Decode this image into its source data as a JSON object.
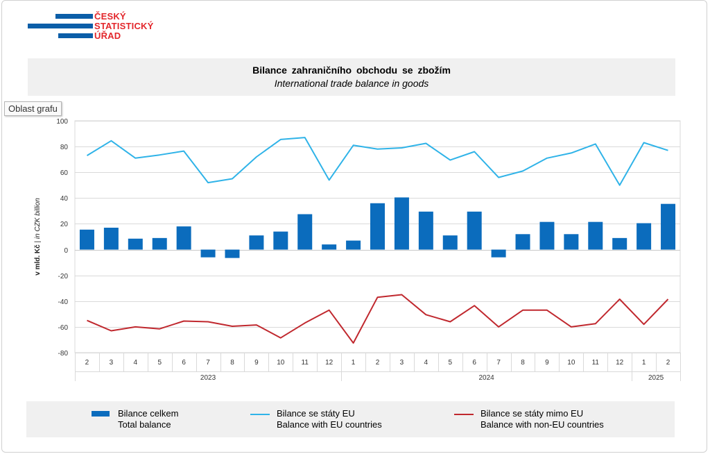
{
  "logo": {
    "line1": "ČESKÝ",
    "line2": "STATISTICKÝ",
    "line3": "ÚŘAD"
  },
  "header": {
    "title_cz": "Bilance zahraničního obchodu se zbožím",
    "title_en": "International trade balance in goods"
  },
  "tooltip": {
    "label": "Oblast grafu"
  },
  "colors": {
    "bars": "#0b6cbd",
    "eu_line": "#2fb3e8",
    "non_eu_line": "#c0282e"
  },
  "chart_data": {
    "type": "bar+line",
    "ylabel_cz": "v mld. Kč",
    "ylabel_en": "in CZK billion",
    "ylabel_sep": " | ",
    "ylim": [
      -80,
      100
    ],
    "yticks": [
      100,
      80,
      60,
      40,
      20,
      0,
      -20,
      -40,
      -60,
      -80
    ],
    "categories": [
      "2",
      "3",
      "4",
      "5",
      "6",
      "7",
      "8",
      "9",
      "10",
      "11",
      "12",
      "1",
      "2",
      "3",
      "4",
      "5",
      "6",
      "7",
      "8",
      "9",
      "10",
      "11",
      "12",
      "1",
      "2"
    ],
    "years": [
      {
        "label": "2023",
        "span": 11
      },
      {
        "label": "2024",
        "span": 12
      },
      {
        "label": "2025",
        "span": 2
      }
    ],
    "series": [
      {
        "name": "Bilance celkem",
        "name_en": "Total balance",
        "kind": "bar",
        "values": [
          15.5,
          17,
          8.5,
          9,
          18,
          -6,
          -6.5,
          11,
          14,
          27.5,
          4,
          7,
          36,
          40.5,
          29.5,
          11,
          29.5,
          -6,
          12,
          21.5,
          12,
          21.5,
          9,
          20.5,
          35.5
        ]
      },
      {
        "name": "Bilance se státy EU",
        "name_en": "Balance with EU countries",
        "kind": "line",
        "values": [
          73,
          84.5,
          71,
          73.5,
          76.5,
          52,
          55,
          72,
          85.5,
          87,
          54,
          81,
          78,
          79,
          82.5,
          69.5,
          76,
          56,
          61,
          71,
          75,
          82,
          50,
          83,
          77
        ]
      },
      {
        "name": "Bilance se státy mimo EU",
        "name_en": "Balance with non-EU countries",
        "kind": "line",
        "values": [
          -55,
          -63,
          -60,
          -61.5,
          -55.5,
          -56,
          -59.5,
          -58.5,
          -68.5,
          -57,
          -47,
          -72.5,
          -37,
          -35,
          -50.5,
          -56,
          -43.5,
          -60,
          -47,
          -47,
          -60,
          -57.5,
          -38.5,
          -58,
          -38.5
        ]
      }
    ]
  }
}
